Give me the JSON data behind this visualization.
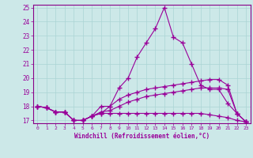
{
  "x": [
    0,
    1,
    2,
    3,
    4,
    5,
    6,
    7,
    8,
    9,
    10,
    11,
    12,
    13,
    14,
    15,
    16,
    17,
    18,
    19,
    20,
    21,
    22,
    23
  ],
  "line1": [
    18.0,
    17.9,
    17.6,
    17.6,
    17.0,
    17.0,
    17.3,
    17.5,
    18.0,
    19.3,
    20.0,
    21.5,
    22.5,
    23.5,
    25.0,
    22.9,
    22.5,
    21.0,
    19.5,
    19.2,
    19.2,
    18.2,
    17.5,
    16.9
  ],
  "line2": [
    18.0,
    17.9,
    17.6,
    17.6,
    17.0,
    17.0,
    17.3,
    18.0,
    18.0,
    18.5,
    18.8,
    19.0,
    19.2,
    19.3,
    19.4,
    19.5,
    19.6,
    19.7,
    19.8,
    19.9,
    19.9,
    19.5,
    17.5,
    16.9
  ],
  "line3": [
    18.0,
    17.9,
    17.6,
    17.6,
    17.0,
    17.0,
    17.3,
    17.6,
    17.7,
    18.0,
    18.3,
    18.5,
    18.7,
    18.8,
    18.9,
    19.0,
    19.1,
    19.2,
    19.3,
    19.3,
    19.3,
    19.2,
    17.5,
    16.9
  ],
  "line4": [
    18.0,
    17.9,
    17.6,
    17.6,
    17.0,
    17.0,
    17.3,
    17.5,
    17.5,
    17.5,
    17.5,
    17.5,
    17.5,
    17.5,
    17.5,
    17.5,
    17.5,
    17.5,
    17.5,
    17.4,
    17.3,
    17.2,
    17.0,
    16.9
  ],
  "color": "#990099",
  "bg_color": "#cce8e8",
  "grid_color": "#aad4d4",
  "axis_color": "#880088",
  "xlabel": "Windchill (Refroidissement éolien,°C)",
  "ylim": [
    17,
    25
  ],
  "xlim": [
    0,
    23
  ],
  "yticks": [
    17,
    18,
    19,
    20,
    21,
    22,
    23,
    24,
    25
  ],
  "xticks": [
    0,
    1,
    2,
    3,
    4,
    5,
    6,
    7,
    8,
    9,
    10,
    11,
    12,
    13,
    14,
    15,
    16,
    17,
    18,
    19,
    20,
    21,
    22,
    23
  ]
}
